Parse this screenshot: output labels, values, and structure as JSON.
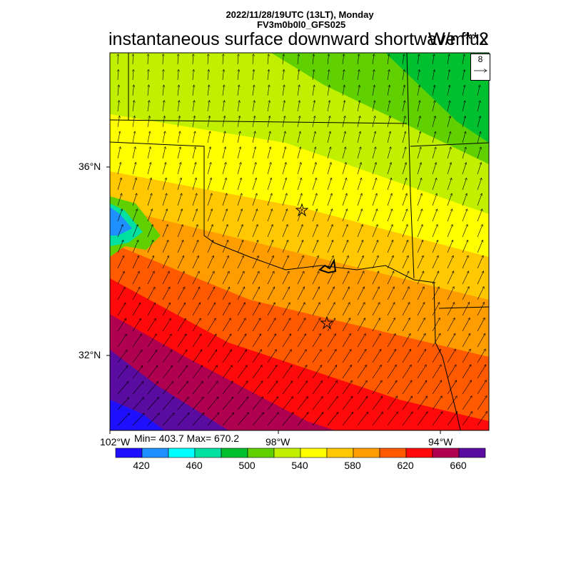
{
  "header": {
    "line1": "2022/11/28/19UTC (13LT), Monday",
    "line2": "FV3m0b0l0_GFS025",
    "title": "instantaneous surface downward shortwave flux",
    "units": "W/m**2"
  },
  "stats": {
    "text": "Min= 403.7 Max= 670.2"
  },
  "lat_labels": [
    "36°N",
    "32°N"
  ],
  "lon_labels": [
    "102°W",
    "98°W",
    "94°W"
  ],
  "vector_reference": {
    "value": "8"
  },
  "colorbar": {
    "colors": [
      "#1f0fff",
      "#1e90ff",
      "#00ffff",
      "#00e0a0",
      "#00c030",
      "#60d000",
      "#c0f000",
      "#ffff00",
      "#ffc800",
      "#ff9c00",
      "#ff5a00",
      "#ff0a0a",
      "#b00050",
      "#5a0ba0"
    ],
    "labels": [
      "420",
      "460",
      "500",
      "540",
      "580",
      "620",
      "660"
    ]
  },
  "markers": [
    "star",
    "star"
  ]
}
